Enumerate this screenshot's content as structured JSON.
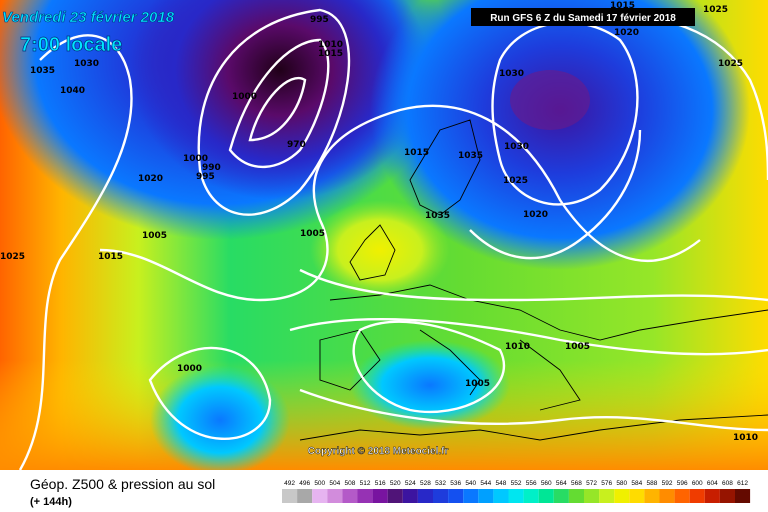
{
  "header": {
    "date": "Vendredi 23 février 2018",
    "time": "7:00 locale",
    "run": "Run GFS 6 Z du Samedi 17 février 2018"
  },
  "footer": {
    "title": "Géop. Z500 & pression au sol",
    "step": "(+ 144h)",
    "copyright": "Copyright © 2018 Meteociel.fr"
  },
  "legend": {
    "labels": [
      492,
      496,
      500,
      504,
      508,
      512,
      516,
      520,
      524,
      528,
      532,
      536,
      540,
      544,
      548,
      552,
      556,
      560,
      564,
      568,
      572,
      576,
      580,
      584,
      588,
      592,
      596,
      600,
      604,
      608,
      612
    ],
    "colors": [
      "#c8c8c8",
      "#a8a8a8",
      "#e6b4f0",
      "#d28cdc",
      "#b45ac8",
      "#9632b4",
      "#7814a0",
      "#501478",
      "#3c14a0",
      "#2828c8",
      "#1e3cdc",
      "#1450f0",
      "#0a78ff",
      "#00a0ff",
      "#00c8ff",
      "#00e6f0",
      "#00f0c8",
      "#00e696",
      "#28dc64",
      "#64dc32",
      "#96e628",
      "#c8f01e",
      "#f0f000",
      "#ffdc00",
      "#ffb400",
      "#ff8c00",
      "#ff6400",
      "#f03c00",
      "#c81e00",
      "#961400",
      "#640a00"
    ]
  },
  "isobars": [
    "1035",
    "1030",
    "1040",
    "1000",
    "990",
    "995",
    "1000",
    "970",
    "1020",
    "1005",
    "1015",
    "1025",
    "1000",
    "1005",
    "1015",
    "1035",
    "1035",
    "1030",
    "1030",
    "1025",
    "1020",
    "1020",
    "1025",
    "1015",
    "1025",
    "1010",
    "1005",
    "1005",
    "1010",
    "995",
    "1010",
    "1015"
  ]
}
